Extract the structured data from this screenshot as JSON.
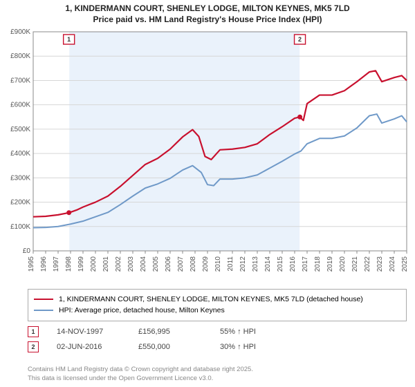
{
  "title": {
    "line1": "1, KINDERMANN COURT, SHENLEY LODGE, MILTON KEYNES, MK5 7LD",
    "line2": "Price paid vs. HM Land Registry's House Price Index (HPI)"
  },
  "chart": {
    "type": "line",
    "background_color": "#ffffff",
    "shaded_band_color": "#eaf2fb",
    "grid_color": "#d6d6d6",
    "axis_color": "#888888",
    "tick_font_size": 10,
    "tick_color": "#555555",
    "x": {
      "min": 1995,
      "max": 2025,
      "step": 1,
      "labels": [
        "1995",
        "1996",
        "1997",
        "1998",
        "1999",
        "2000",
        "2001",
        "2002",
        "2003",
        "2004",
        "2005",
        "2006",
        "2007",
        "2008",
        "2009",
        "2010",
        "2011",
        "2012",
        "2013",
        "2014",
        "2015",
        "2016",
        "2017",
        "2018",
        "2019",
        "2020",
        "2021",
        "2022",
        "2023",
        "2024",
        "2025"
      ]
    },
    "y": {
      "min": 0,
      "max": 900000,
      "step": 100000,
      "labels": [
        "£0",
        "£100K",
        "£200K",
        "£300K",
        "£400K",
        "£500K",
        "£600K",
        "£700K",
        "£800K",
        "£900K"
      ]
    },
    "shaded_band": {
      "x_start": 1997.9,
      "x_end": 2016.4
    },
    "series": [
      {
        "name": "price_paid",
        "color": "#c8102e",
        "width": 2.2,
        "points": [
          [
            1995,
            140000
          ],
          [
            1996,
            142000
          ],
          [
            1997,
            148000
          ],
          [
            1997.9,
            156995
          ],
          [
            1998.5,
            168000
          ],
          [
            1999,
            180000
          ],
          [
            2000,
            200000
          ],
          [
            2001,
            225000
          ],
          [
            2002,
            265000
          ],
          [
            2003,
            310000
          ],
          [
            2004,
            355000
          ],
          [
            2005,
            380000
          ],
          [
            2006,
            418000
          ],
          [
            2007,
            468000
          ],
          [
            2007.8,
            498000
          ],
          [
            2008.3,
            470000
          ],
          [
            2008.8,
            388000
          ],
          [
            2009.3,
            375000
          ],
          [
            2010,
            415000
          ],
          [
            2011,
            418000
          ],
          [
            2012,
            425000
          ],
          [
            2013,
            440000
          ],
          [
            2014,
            478000
          ],
          [
            2015,
            510000
          ],
          [
            2016,
            545000
          ],
          [
            2016.4,
            550000
          ],
          [
            2016.7,
            536000
          ],
          [
            2017,
            605000
          ],
          [
            2018,
            640000
          ],
          [
            2019,
            640000
          ],
          [
            2020,
            658000
          ],
          [
            2021,
            695000
          ],
          [
            2022,
            735000
          ],
          [
            2022.5,
            740000
          ],
          [
            2023,
            695000
          ],
          [
            2024,
            712000
          ],
          [
            2024.6,
            720000
          ],
          [
            2025,
            700000
          ]
        ]
      },
      {
        "name": "hpi",
        "color": "#6f99c8",
        "width": 2.0,
        "points": [
          [
            1995,
            95000
          ],
          [
            1996,
            96000
          ],
          [
            1997,
            100000
          ],
          [
            1998,
            110000
          ],
          [
            1999,
            122000
          ],
          [
            2000,
            140000
          ],
          [
            2001,
            158000
          ],
          [
            2002,
            190000
          ],
          [
            2003,
            225000
          ],
          [
            2004,
            258000
          ],
          [
            2005,
            275000
          ],
          [
            2006,
            298000
          ],
          [
            2007,
            332000
          ],
          [
            2007.8,
            350000
          ],
          [
            2008.5,
            322000
          ],
          [
            2009,
            272000
          ],
          [
            2009.5,
            268000
          ],
          [
            2010,
            295000
          ],
          [
            2011,
            295000
          ],
          [
            2012,
            300000
          ],
          [
            2013,
            312000
          ],
          [
            2014,
            340000
          ],
          [
            2015,
            368000
          ],
          [
            2016,
            398000
          ],
          [
            2016.5,
            410000
          ],
          [
            2017,
            440000
          ],
          [
            2018,
            462000
          ],
          [
            2019,
            462000
          ],
          [
            2020,
            472000
          ],
          [
            2021,
            505000
          ],
          [
            2022,
            555000
          ],
          [
            2022.6,
            562000
          ],
          [
            2023,
            525000
          ],
          [
            2024,
            542000
          ],
          [
            2024.6,
            555000
          ],
          [
            2025,
            530000
          ]
        ]
      }
    ],
    "sale_markers": [
      {
        "n": "1",
        "x": 1997.87,
        "y": 156995,
        "color": "#c8102e"
      },
      {
        "n": "2",
        "x": 2016.42,
        "y": 550000,
        "color": "#c8102e"
      }
    ]
  },
  "legend": {
    "items": [
      {
        "color": "#c8102e",
        "label": "1, KINDERMANN COURT, SHENLEY LODGE, MILTON KEYNES, MK5 7LD (detached house)"
      },
      {
        "color": "#6f99c8",
        "label": "HPI: Average price, detached house, Milton Keynes"
      }
    ]
  },
  "sales": [
    {
      "n": "1",
      "date": "14-NOV-1997",
      "price": "£156,995",
      "delta": "55% ↑ HPI",
      "chip_color": "#c8102e"
    },
    {
      "n": "2",
      "date": "02-JUN-2016",
      "price": "£550,000",
      "delta": "30% ↑ HPI",
      "chip_color": "#c8102e"
    }
  ],
  "credit": {
    "line1": "Contains HM Land Registry data © Crown copyright and database right 2025.",
    "line2": "This data is licensed under the Open Government Licence v3.0."
  }
}
